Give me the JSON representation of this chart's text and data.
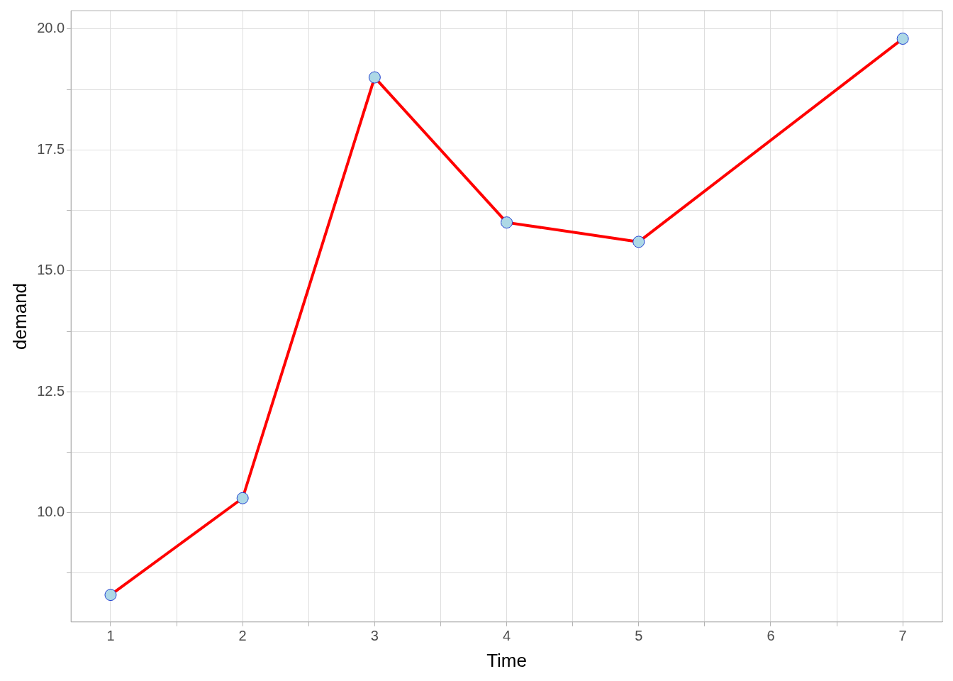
{
  "chart_data": {
    "type": "line",
    "xlabel": "Time",
    "ylabel": "demand",
    "x": [
      1,
      2,
      3,
      4,
      5,
      7
    ],
    "series": [
      {
        "color": "#ff0000",
        "values": [
          8.3,
          10.3,
          19.0,
          16.0,
          15.6,
          19.8
        ]
      }
    ],
    "xlim": [
      0.7,
      7.3
    ],
    "xticks": [
      1,
      {
        "value": 1.5,
        "label": null
      },
      2,
      {
        "value": 2.5,
        "label": null
      },
      3,
      {
        "value": 3.5,
        "label": null
      },
      4,
      {
        "value": 4.5,
        "label": null
      },
      5,
      {
        "value": 5.5,
        "label": null
      },
      6,
      {
        "value": 6.5,
        "label": null
      },
      7
    ],
    "ylim": [
      7.74,
      20.38
    ],
    "yticks": [
      {
        "value": 8.75,
        "label": null
      },
      {
        "value": 10,
        "label": "10.0"
      },
      {
        "value": 11.25,
        "label": null
      },
      {
        "value": 12.5,
        "label": "12.5"
      },
      {
        "value": 13.75,
        "label": null
      },
      {
        "value": 15,
        "label": "15.0"
      },
      {
        "value": 16.25,
        "label": null
      },
      {
        "value": 17.5,
        "label": "17.5"
      },
      {
        "value": 18.75,
        "label": null
      },
      {
        "value": 20,
        "label": "20.0"
      }
    ],
    "grid": true,
    "marker": "circle",
    "line_style": "solid",
    "legend": false
  }
}
